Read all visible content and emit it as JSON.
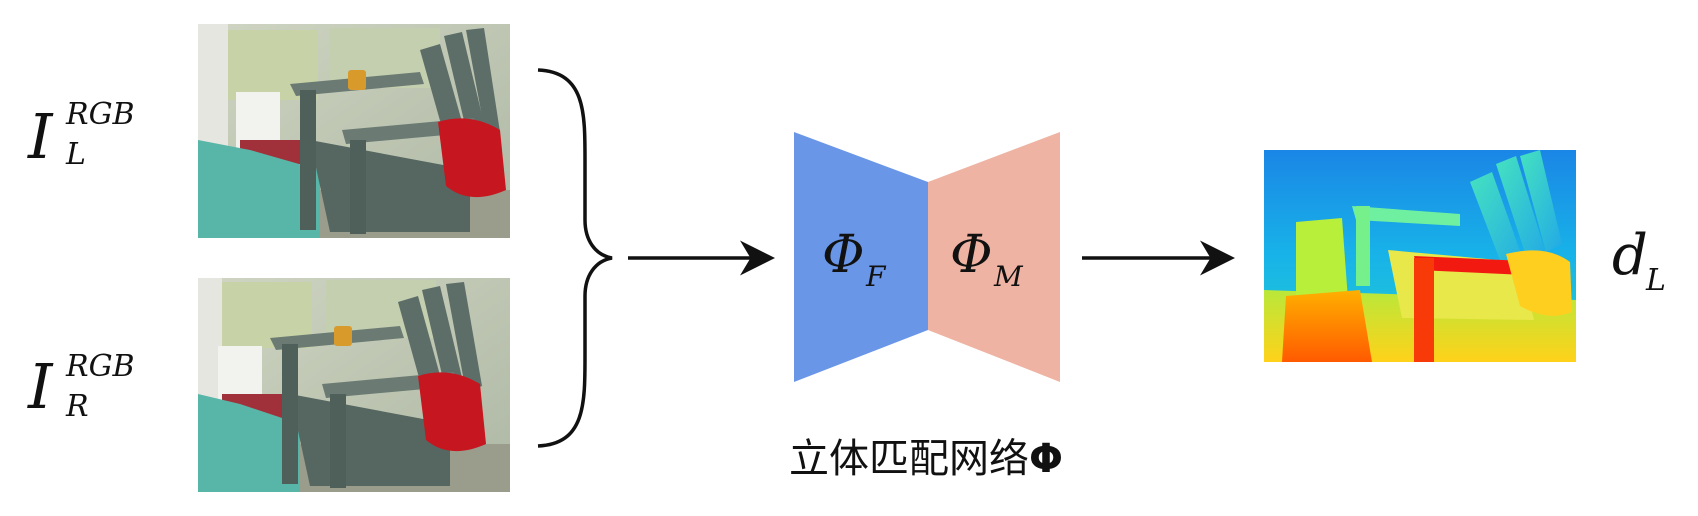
{
  "inputs": {
    "left_label": {
      "base": "I",
      "sup": "RGB",
      "sub": "L"
    },
    "right_label": {
      "base": "I",
      "sup": "RGB",
      "sub": "R"
    },
    "left_image": "left stereo view of an Adirondack chair (RGB photo)",
    "right_image": "right stereo view of an Adirondack chair (RGB photo)"
  },
  "network": {
    "feature_label": {
      "base": "Φ",
      "sub": "F"
    },
    "matching_label": {
      "base": "Φ",
      "sub": "M"
    },
    "caption": "立体匹配网络",
    "caption_symbol": "Φ",
    "colors": {
      "feature": "#6a96e8",
      "matching": "#eeb3a2"
    }
  },
  "output": {
    "label": {
      "base": "d",
      "sub": "L"
    },
    "image": "predicted left disparity map (jet colormap)"
  }
}
